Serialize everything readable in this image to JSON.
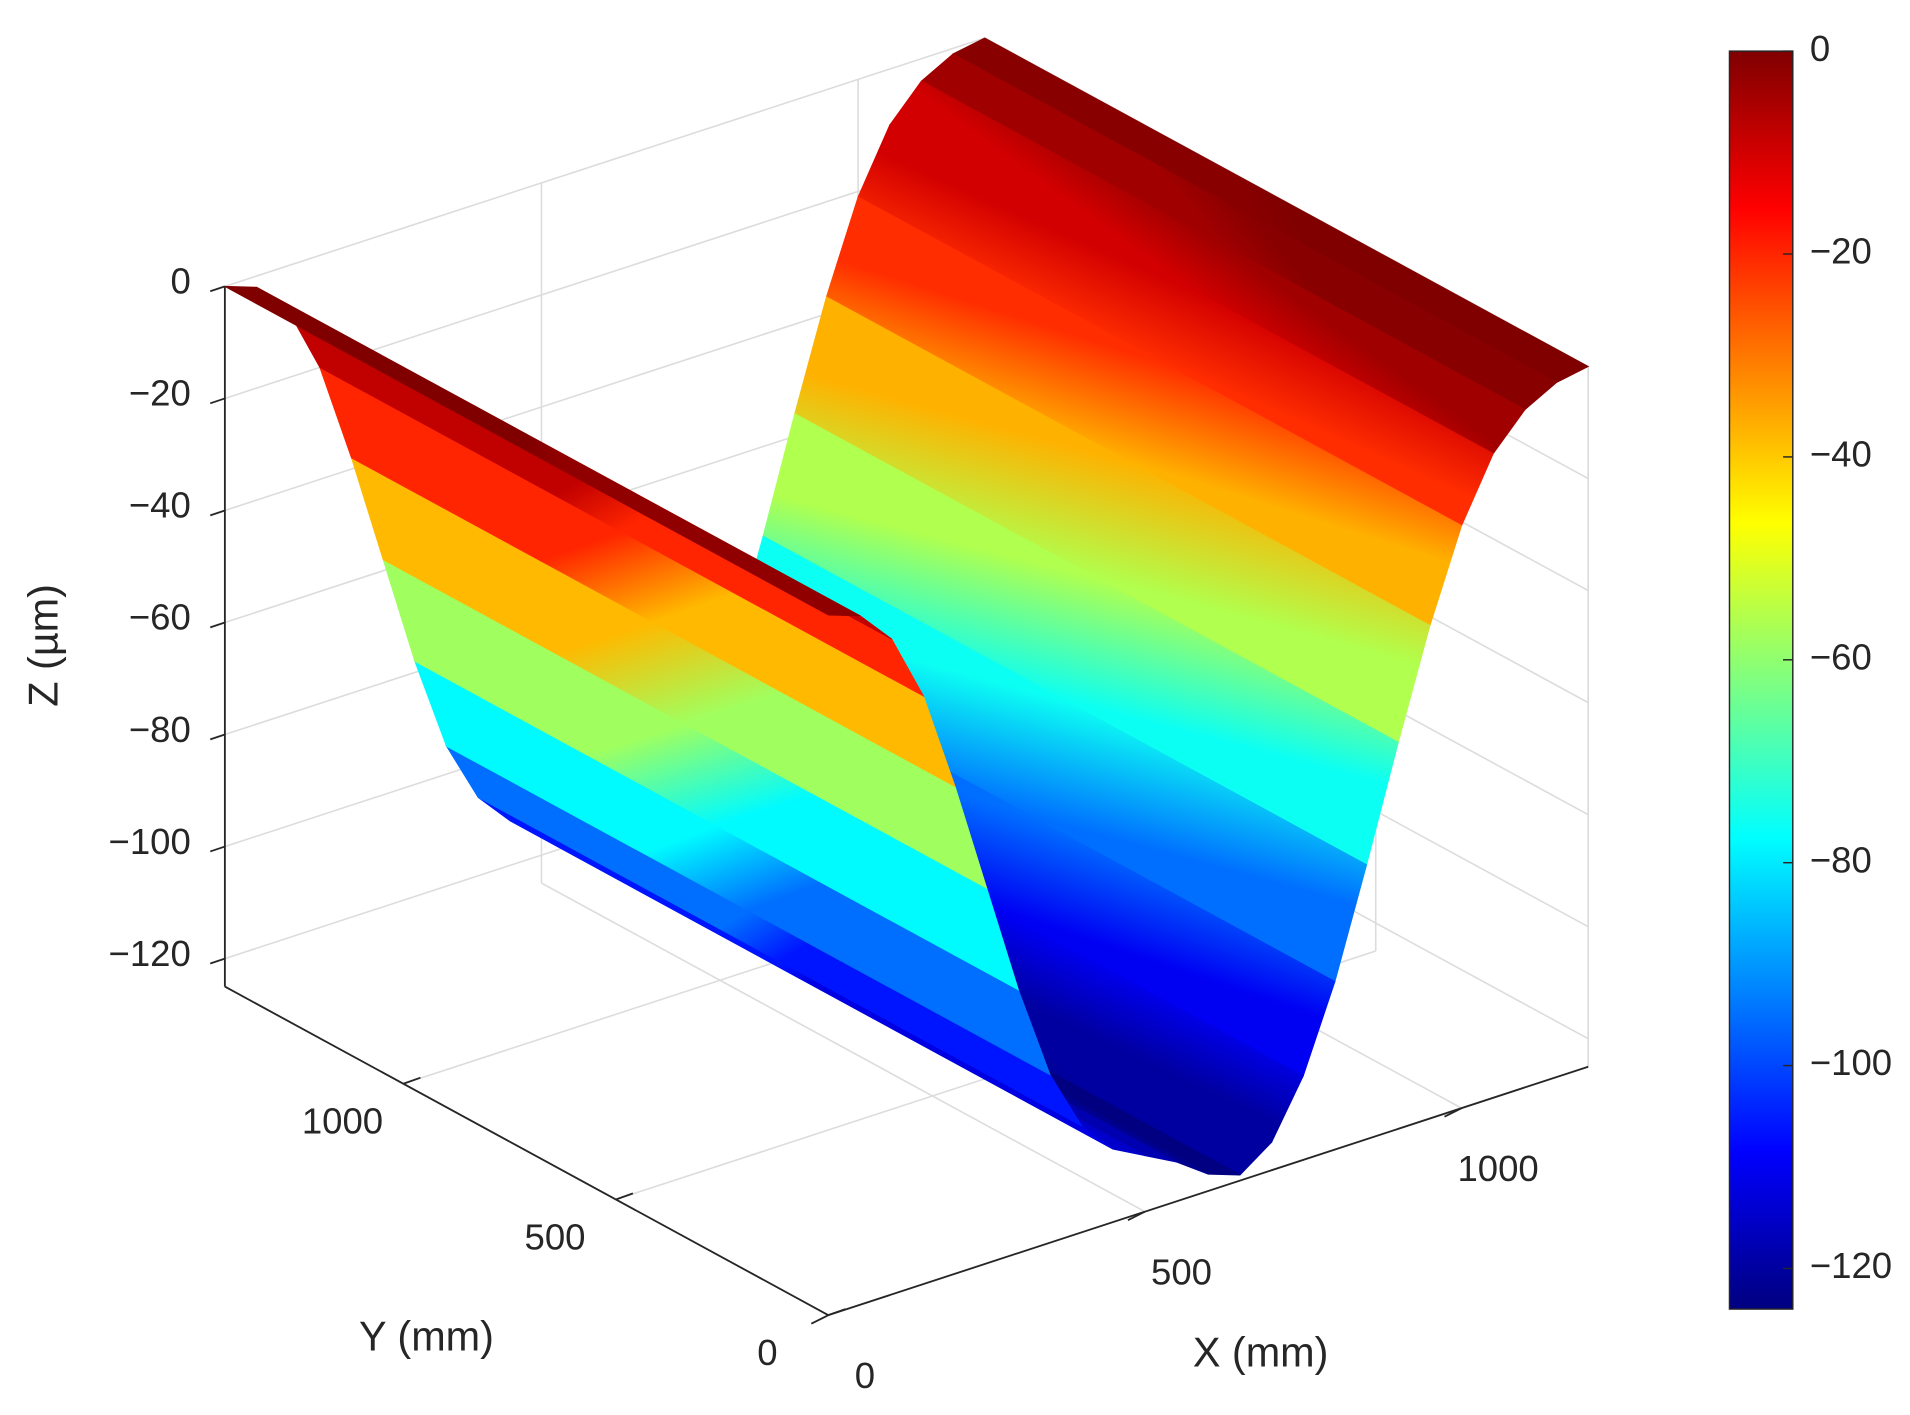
{
  "chart_data": {
    "type": "surface",
    "xlabel": "X (mm)",
    "ylabel": "Y (mm)",
    "zlabel": "Z (µm)",
    "x": [
      0,
      50,
      100,
      150,
      200,
      250,
      300,
      350,
      400,
      450,
      500,
      550,
      600,
      650,
      700,
      750,
      800,
      850,
      900,
      950,
      1000,
      1050,
      1100,
      1150,
      1200
    ],
    "z": [
      0,
      -2,
      -8,
      -20,
      -38,
      -58,
      -78,
      -95,
      -106,
      -112,
      -115,
      -118,
      -122,
      -124,
      -120,
      -110,
      -95,
      -76,
      -56,
      -37,
      -21,
      -10,
      -4,
      -1,
      0
    ],
    "xlim": [
      0,
      1200
    ],
    "ylim": [
      0,
      1420
    ],
    "zlim": [
      -125,
      0
    ],
    "xticks": [
      0,
      500,
      1000
    ],
    "yticks": [
      0,
      500,
      1000
    ],
    "zticks": [
      {
        "value": -120,
        "label": "−120"
      },
      {
        "value": -100,
        "label": "−100"
      },
      {
        "value": -80,
        "label": "−80"
      },
      {
        "value": -60,
        "label": "−60"
      },
      {
        "value": -40,
        "label": "−40"
      },
      {
        "value": -20,
        "label": "−20"
      },
      0
    ],
    "grid": true,
    "colormap": "jet",
    "clim": [
      -124,
      0
    ],
    "colorbar_ticks": [
      {
        "value": -120,
        "label": "−120"
      },
      {
        "value": -100,
        "label": "−100"
      },
      {
        "value": -80,
        "label": "−80"
      },
      {
        "value": -60,
        "label": "−60"
      },
      {
        "value": -40,
        "label": "−40"
      },
      {
        "value": -20,
        "label": "−20"
      },
      0
    ]
  }
}
